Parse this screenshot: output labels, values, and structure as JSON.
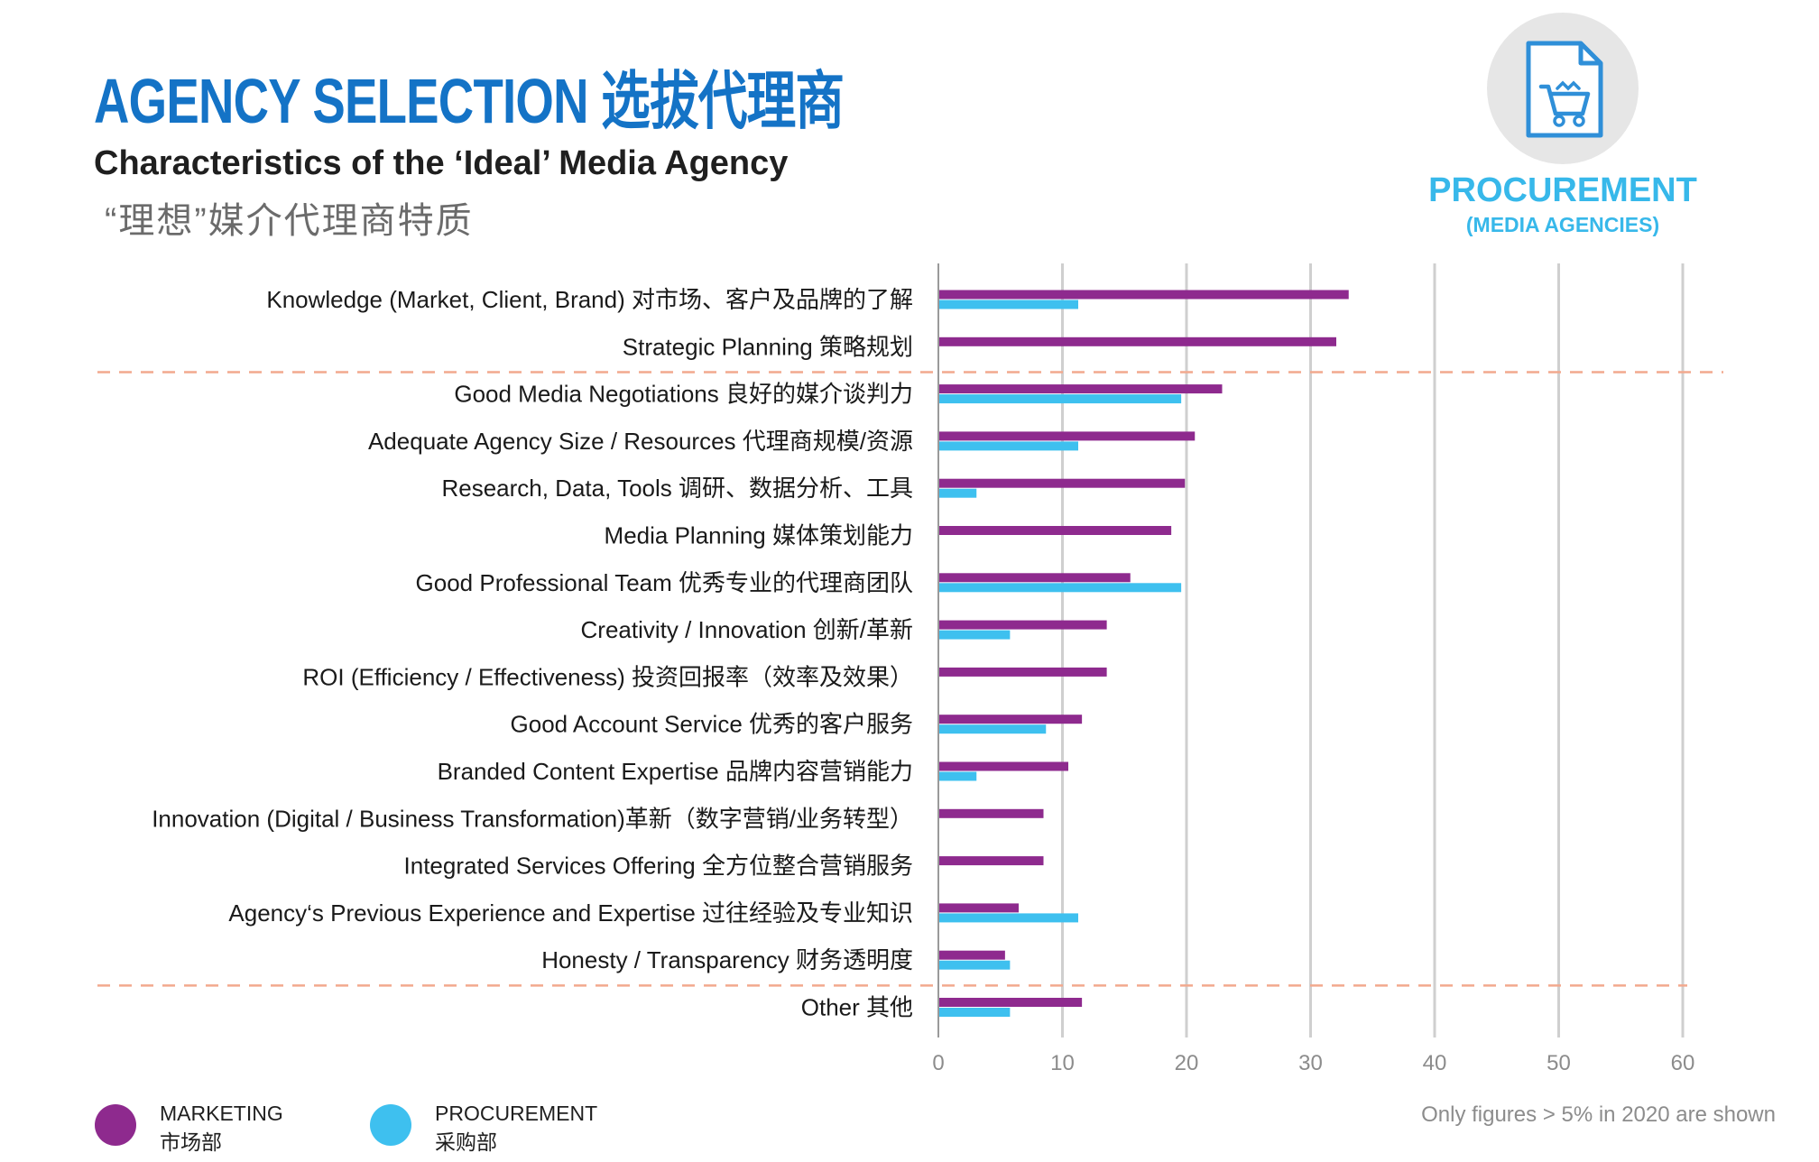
{
  "header": {
    "title": "AGENCY SELECTION 选拔代理商",
    "subtitle": "Characteristics of the ‘Ideal’ Media Agency",
    "subtitle_cn": "“理想”媒介代理商特质"
  },
  "badge": {
    "icon": "shopping-cart-document-icon",
    "line1": "PROCUREMENT",
    "line2": "(MEDIA AGENCIES)"
  },
  "colors": {
    "title": "#1473c6",
    "marketing": "#8e2a8e",
    "procurement": "#3ec0ef",
    "divider": "#f2a98e",
    "grid": "#cfcfcf"
  },
  "legend": {
    "marketing_en": "MARKETING",
    "marketing_cn": "市场部",
    "procurement_en": "PROCUREMENT",
    "procurement_cn": "采购部"
  },
  "note": "Only figures > 5% in 2020 are shown",
  "chart_data": {
    "type": "bar",
    "orientation": "horizontal",
    "categories": [
      "Knowledge (Market, Client, Brand) 对市场、客户及品牌的了解",
      "Strategic Planning 策略规划",
      "Good Media Negotiations 良好的媒介谈判力",
      "Adequate Agency Size / Resources 代理商规模/资源",
      "Research, Data, Tools 调研、数据分析、工具",
      "Media Planning 媒体策划能力",
      "Good Professional Team 优秀专业的代理商团队",
      "Creativity / Innovation 创新/革新",
      "ROI (Efficiency / Effectiveness) 投资回报率（效率及效果）",
      "Good Account Service 优秀的客户服务",
      "Branded Content Expertise 品牌内容营销能力",
      "Innovation (Digital / Business Transformation)革新（数字营销/业务转型）",
      "Integrated Services Offering 全方位整合营销服务",
      "Agency‘s Previous Experience and Expertise 过往经验及专业知识",
      "Honesty / Transparency 财务透明度",
      "Other 其他"
    ],
    "series": [
      {
        "name": "MARKETING",
        "color": "#8e2a8e",
        "values": [
          33,
          32,
          22.8,
          20.6,
          19.8,
          18.7,
          15.4,
          13.5,
          13.5,
          11.5,
          10.4,
          8.4,
          8.4,
          6.4,
          5.3,
          11.5
        ]
      },
      {
        "name": "PROCUREMENT",
        "color": "#3ec0ef",
        "values": [
          11.2,
          null,
          19.5,
          11.2,
          3,
          null,
          19.5,
          5.7,
          null,
          8.6,
          3,
          null,
          null,
          11.2,
          5.7,
          5.7
        ]
      }
    ],
    "x_ticks": [
      0,
      10,
      20,
      30,
      40,
      50,
      60
    ],
    "xlim": [
      0,
      60
    ],
    "grid": true,
    "dividers_after_index": [
      1,
      14
    ],
    "legend_position": "bottom-left"
  }
}
